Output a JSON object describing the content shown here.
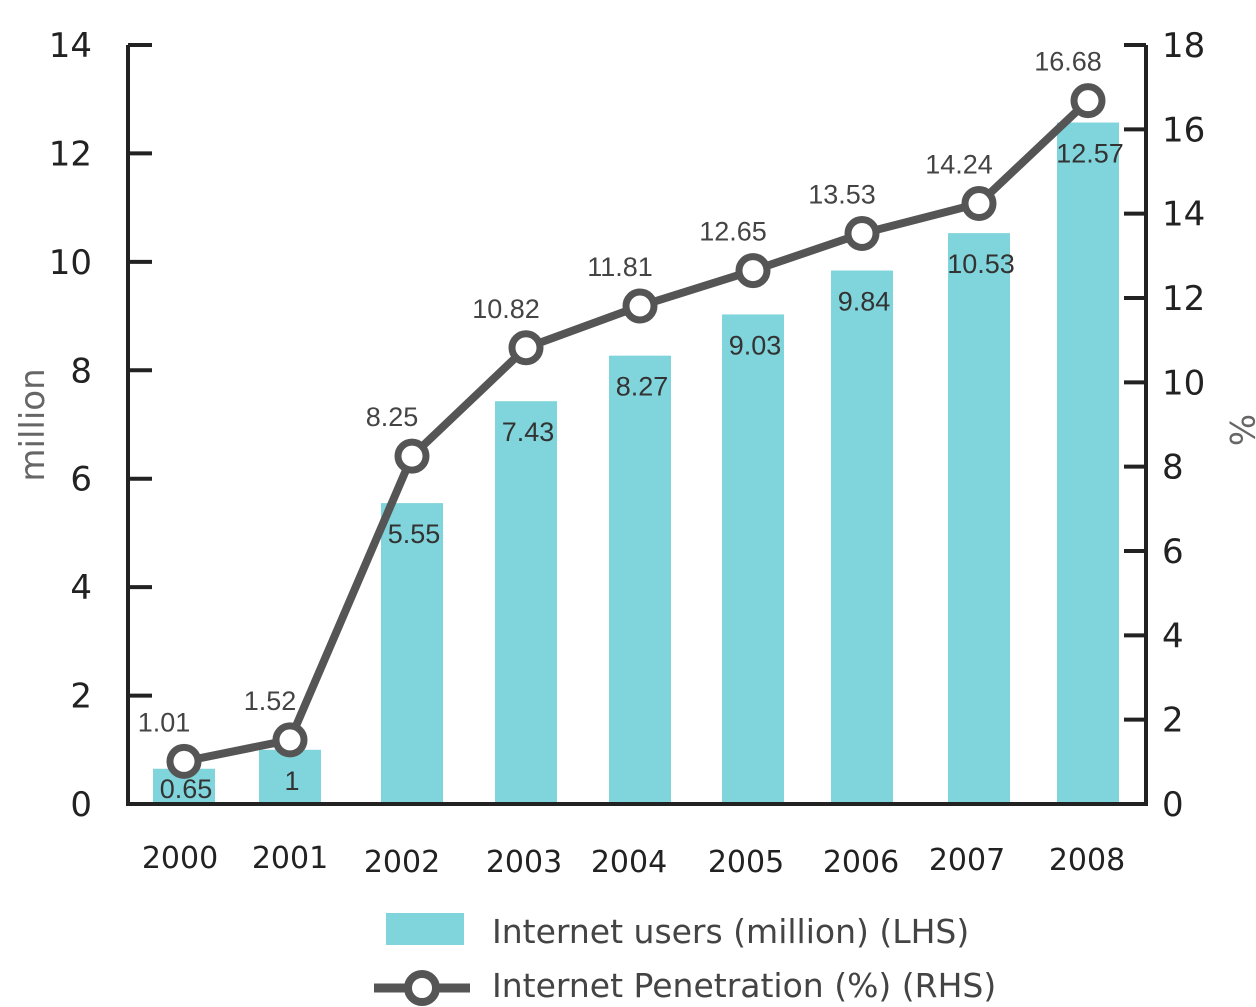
{
  "chart_data": {
    "type": "bar",
    "categories": [
      "2000",
      "2001",
      "2002",
      "2003",
      "2004",
      "2005",
      "2006",
      "2007",
      "2008"
    ],
    "series": [
      {
        "name": "Internet users (million) (LHS)",
        "type": "bar",
        "axis": "left",
        "values": [
          0.65,
          1,
          5.55,
          7.43,
          8.27,
          9.03,
          9.84,
          10.53,
          12.57
        ],
        "labels": [
          "0.65",
          "1",
          "5.55",
          "7.43",
          "8.27",
          "9.03",
          "9.84",
          "10.53",
          "12.57"
        ]
      },
      {
        "name": "Internet Penetration (%) (RHS)",
        "type": "line",
        "axis": "right",
        "values": [
          1.01,
          1.52,
          8.25,
          10.82,
          11.81,
          12.65,
          13.53,
          14.24,
          16.68
        ],
        "labels": [
          "1.01",
          "1.52",
          "8.25",
          "10.82",
          "11.81",
          "12.65",
          "13.53",
          "14.24",
          "16.68"
        ]
      }
    ],
    "ylabel": "million",
    "y2label": "%",
    "ylim": [
      0,
      14
    ],
    "y2lim": [
      0,
      18
    ],
    "yticks": [
      "0",
      "2",
      "4",
      "6",
      "8",
      "10",
      "12",
      "14"
    ],
    "y2ticks": [
      "0",
      "2",
      "4",
      "6",
      "8",
      "10",
      "12",
      "14",
      "16",
      "18"
    ],
    "grid": false,
    "legend": "bottom",
    "colors": {
      "bar": "#80d4db",
      "line": "#555555",
      "axis": "#222222"
    }
  }
}
